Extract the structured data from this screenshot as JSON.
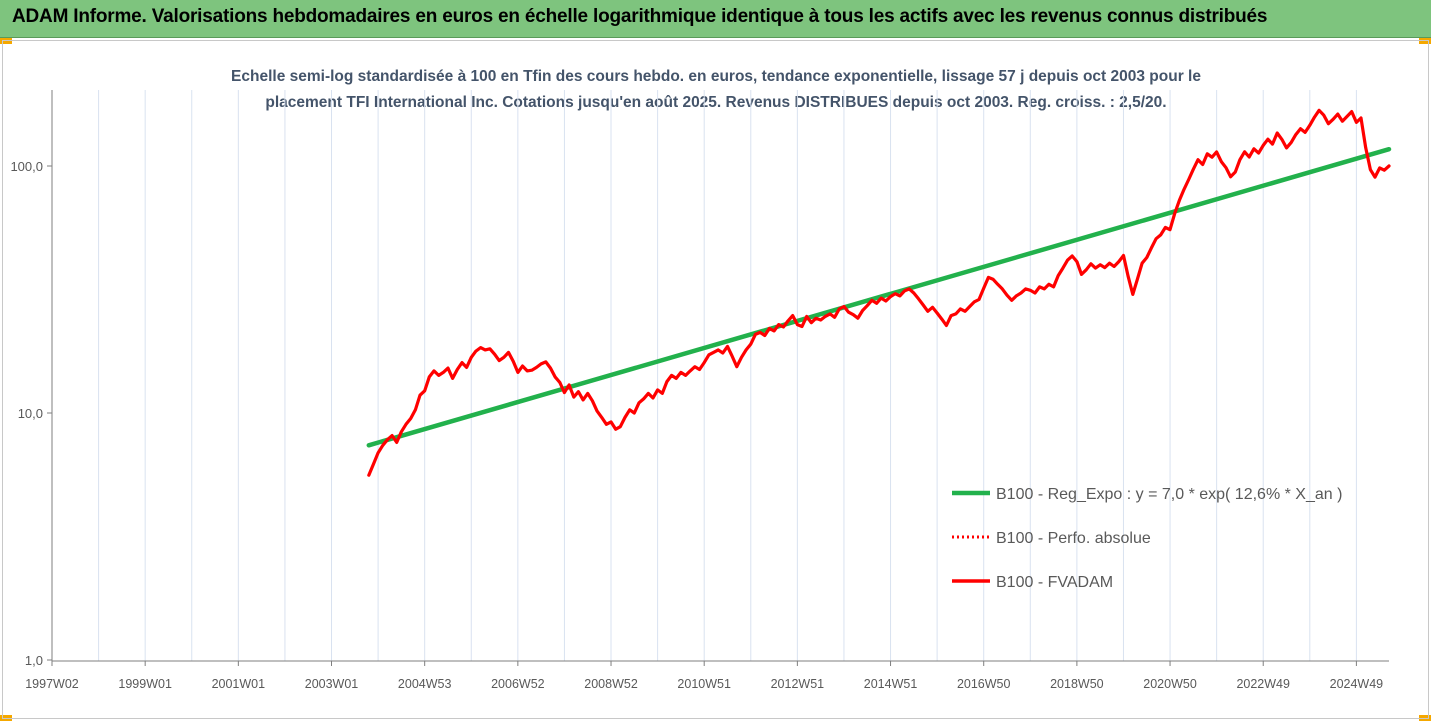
{
  "header": {
    "title": "ADAM Informe. Valorisations hebdomadaires en euros en échelle logarithmique identique à tous les actifs avec les revenus connus distribués"
  },
  "colors": {
    "header_bg": "#7ec47e",
    "corner": "#f5a800",
    "trend": "#22b14c",
    "fvadam": "#ff0000",
    "perf": "#ff0000",
    "grid": "#d9e2f0",
    "subtitle": "#44546a"
  },
  "chart_data": {
    "type": "line",
    "title_lines": [
      "Echelle semi-log standardisée à 100 en Tfin des cours hebdo. en euros, tendance exponentielle, lissage 57 j depuis oct 2003 pour le",
      "placement TFI International Inc. Cotations jusqu'en août 2025. Revenus DISTRIBUES depuis oct 2003. Reg. croiss. : 2,5/20."
    ],
    "y_scale": "log",
    "ylim": [
      1,
      200
    ],
    "y_ticks": [
      {
        "value": 1,
        "label": "1,0"
      },
      {
        "value": 10,
        "label": "10,0"
      },
      {
        "value": 100,
        "label": "100,0"
      }
    ],
    "xlim": [
      1997.0,
      2025.7
    ],
    "x_ticks": [
      {
        "value": 1997.0,
        "label": "1997W02"
      },
      {
        "value": 1999.0,
        "label": "1999W01"
      },
      {
        "value": 2001.0,
        "label": "2001W01"
      },
      {
        "value": 2003.0,
        "label": "2003W01"
      },
      {
        "value": 2005.0,
        "label": "2004W53"
      },
      {
        "value": 2007.0,
        "label": "2006W52"
      },
      {
        "value": 2009.0,
        "label": "2008W52"
      },
      {
        "value": 2011.0,
        "label": "2010W51"
      },
      {
        "value": 2013.0,
        "label": "2012W51"
      },
      {
        "value": 2015.0,
        "label": "2014W51"
      },
      {
        "value": 2017.0,
        "label": "2016W50"
      },
      {
        "value": 2019.0,
        "label": "2018W50"
      },
      {
        "value": 2021.0,
        "label": "2020W50"
      },
      {
        "value": 2023.0,
        "label": "2022W49"
      },
      {
        "value": 2025.0,
        "label": "2024W49"
      }
    ],
    "grid": true,
    "legend_position": "right",
    "legend": [
      {
        "key": "trend",
        "label": "B100 - Reg_Expo : y = 7,0 * exp( 12,6% *  X_an )",
        "style": "solid-thick"
      },
      {
        "key": "perf",
        "label": "B100 - Perfo. absolue",
        "style": "dotted"
      },
      {
        "key": "fvadam",
        "label": "B100 - FVADAM",
        "style": "solid"
      }
    ],
    "series": [
      {
        "key": "trend",
        "points": [
          [
            2003.8,
            7.4
          ],
          [
            2025.7,
            117
          ]
        ]
      },
      {
        "key": "fvadam",
        "points": [
          [
            2003.8,
            5.6
          ],
          [
            2003.9,
            6.2
          ],
          [
            2004.0,
            6.9
          ],
          [
            2004.1,
            7.4
          ],
          [
            2004.2,
            7.8
          ],
          [
            2004.3,
            8.1
          ],
          [
            2004.4,
            7.6
          ],
          [
            2004.5,
            8.4
          ],
          [
            2004.6,
            9.0
          ],
          [
            2004.7,
            9.5
          ],
          [
            2004.8,
            10.3
          ],
          [
            2004.9,
            11.8
          ],
          [
            2005.0,
            12.3
          ],
          [
            2005.1,
            14.0
          ],
          [
            2005.2,
            14.8
          ],
          [
            2005.3,
            14.2
          ],
          [
            2005.4,
            14.6
          ],
          [
            2005.5,
            15.2
          ],
          [
            2005.6,
            13.8
          ],
          [
            2005.7,
            15.0
          ],
          [
            2005.8,
            16.0
          ],
          [
            2005.9,
            15.3
          ],
          [
            2006.0,
            16.8
          ],
          [
            2006.1,
            17.8
          ],
          [
            2006.2,
            18.4
          ],
          [
            2006.3,
            18.0
          ],
          [
            2006.4,
            18.2
          ],
          [
            2006.5,
            17.3
          ],
          [
            2006.6,
            16.3
          ],
          [
            2006.7,
            16.8
          ],
          [
            2006.8,
            17.6
          ],
          [
            2006.9,
            16.2
          ],
          [
            2007.0,
            14.6
          ],
          [
            2007.1,
            15.5
          ],
          [
            2007.2,
            14.8
          ],
          [
            2007.3,
            14.9
          ],
          [
            2007.4,
            15.3
          ],
          [
            2007.5,
            15.8
          ],
          [
            2007.6,
            16.1
          ],
          [
            2007.7,
            15.2
          ],
          [
            2007.8,
            14.0
          ],
          [
            2007.9,
            13.3
          ],
          [
            2008.0,
            12.1
          ],
          [
            2008.1,
            13.0
          ],
          [
            2008.2,
            11.6
          ],
          [
            2008.3,
            12.2
          ],
          [
            2008.4,
            11.3
          ],
          [
            2008.5,
            12.0
          ],
          [
            2008.6,
            11.2
          ],
          [
            2008.7,
            10.2
          ],
          [
            2008.8,
            9.6
          ],
          [
            2008.9,
            9.0
          ],
          [
            2009.0,
            9.2
          ],
          [
            2009.1,
            8.6
          ],
          [
            2009.2,
            8.8
          ],
          [
            2009.3,
            9.6
          ],
          [
            2009.4,
            10.3
          ],
          [
            2009.5,
            10.0
          ],
          [
            2009.6,
            11.0
          ],
          [
            2009.7,
            11.4
          ],
          [
            2009.8,
            12.0
          ],
          [
            2009.9,
            11.5
          ],
          [
            2010.0,
            12.4
          ],
          [
            2010.1,
            12.0
          ],
          [
            2010.2,
            13.4
          ],
          [
            2010.3,
            14.2
          ],
          [
            2010.4,
            13.8
          ],
          [
            2010.5,
            14.6
          ],
          [
            2010.6,
            14.2
          ],
          [
            2010.7,
            14.8
          ],
          [
            2010.8,
            15.4
          ],
          [
            2010.9,
            15.0
          ],
          [
            2011.0,
            16.0
          ],
          [
            2011.1,
            17.2
          ],
          [
            2011.2,
            17.6
          ],
          [
            2011.3,
            18.0
          ],
          [
            2011.4,
            17.5
          ],
          [
            2011.5,
            18.6
          ],
          [
            2011.6,
            17.0
          ],
          [
            2011.7,
            15.4
          ],
          [
            2011.8,
            16.8
          ],
          [
            2011.9,
            18.0
          ],
          [
            2012.0,
            19.0
          ],
          [
            2012.1,
            20.8
          ],
          [
            2012.2,
            21.2
          ],
          [
            2012.3,
            20.6
          ],
          [
            2012.4,
            22.0
          ],
          [
            2012.5,
            21.5
          ],
          [
            2012.6,
            22.8
          ],
          [
            2012.7,
            22.3
          ],
          [
            2012.8,
            23.6
          ],
          [
            2012.9,
            24.8
          ],
          [
            2013.0,
            22.8
          ],
          [
            2013.1,
            22.4
          ],
          [
            2013.2,
            24.6
          ],
          [
            2013.3,
            23.2
          ],
          [
            2013.4,
            24.2
          ],
          [
            2013.5,
            23.8
          ],
          [
            2013.6,
            24.6
          ],
          [
            2013.7,
            25.2
          ],
          [
            2013.8,
            24.4
          ],
          [
            2013.9,
            26.4
          ],
          [
            2014.0,
            27.0
          ],
          [
            2014.1,
            25.6
          ],
          [
            2014.2,
            25.0
          ],
          [
            2014.3,
            24.2
          ],
          [
            2014.4,
            26.0
          ],
          [
            2014.5,
            27.2
          ],
          [
            2014.6,
            28.6
          ],
          [
            2014.7,
            27.8
          ],
          [
            2014.8,
            29.2
          ],
          [
            2014.9,
            28.4
          ],
          [
            2015.0,
            29.6
          ],
          [
            2015.1,
            30.4
          ],
          [
            2015.2,
            29.8
          ],
          [
            2015.3,
            31.2
          ],
          [
            2015.4,
            31.8
          ],
          [
            2015.5,
            30.6
          ],
          [
            2015.6,
            29.0
          ],
          [
            2015.7,
            27.4
          ],
          [
            2015.8,
            25.8
          ],
          [
            2015.9,
            26.8
          ],
          [
            2016.0,
            25.4
          ],
          [
            2016.1,
            24.0
          ],
          [
            2016.2,
            22.6
          ],
          [
            2016.3,
            24.8
          ],
          [
            2016.4,
            25.2
          ],
          [
            2016.5,
            26.4
          ],
          [
            2016.6,
            25.8
          ],
          [
            2016.7,
            27.0
          ],
          [
            2016.8,
            28.2
          ],
          [
            2016.9,
            28.8
          ],
          [
            2017.0,
            32.0
          ],
          [
            2017.1,
            35.4
          ],
          [
            2017.2,
            34.8
          ],
          [
            2017.3,
            33.2
          ],
          [
            2017.4,
            31.8
          ],
          [
            2017.5,
            30.0
          ],
          [
            2017.6,
            28.6
          ],
          [
            2017.7,
            29.8
          ],
          [
            2017.8,
            30.6
          ],
          [
            2017.9,
            31.8
          ],
          [
            2018.0,
            31.4
          ],
          [
            2018.1,
            30.6
          ],
          [
            2018.2,
            32.4
          ],
          [
            2018.3,
            31.8
          ],
          [
            2018.4,
            33.2
          ],
          [
            2018.5,
            32.4
          ],
          [
            2018.6,
            36.0
          ],
          [
            2018.7,
            38.6
          ],
          [
            2018.8,
            41.6
          ],
          [
            2018.9,
            43.2
          ],
          [
            2019.0,
            41.0
          ],
          [
            2019.1,
            36.4
          ],
          [
            2019.2,
            38.0
          ],
          [
            2019.3,
            40.2
          ],
          [
            2019.4,
            38.6
          ],
          [
            2019.5,
            39.8
          ],
          [
            2019.6,
            38.8
          ],
          [
            2019.7,
            40.4
          ],
          [
            2019.8,
            39.2
          ],
          [
            2019.9,
            41.0
          ],
          [
            2020.0,
            43.4
          ],
          [
            2020.1,
            35.8
          ],
          [
            2020.2,
            30.2
          ],
          [
            2020.3,
            34.8
          ],
          [
            2020.4,
            40.4
          ],
          [
            2020.5,
            42.6
          ],
          [
            2020.6,
            46.6
          ],
          [
            2020.7,
            50.8
          ],
          [
            2020.8,
            52.6
          ],
          [
            2020.9,
            56.4
          ],
          [
            2021.0,
            55.2
          ],
          [
            2021.1,
            64.2
          ],
          [
            2021.2,
            72.6
          ],
          [
            2021.3,
            80.4
          ],
          [
            2021.4,
            88.2
          ],
          [
            2021.5,
            97.0
          ],
          [
            2021.6,
            106.0
          ],
          [
            2021.7,
            101.4
          ],
          [
            2021.8,
            112.0
          ],
          [
            2021.9,
            108.6
          ],
          [
            2022.0,
            114.0
          ],
          [
            2022.1,
            104.2
          ],
          [
            2022.2,
            98.4
          ],
          [
            2022.3,
            90.4
          ],
          [
            2022.4,
            94.6
          ],
          [
            2022.5,
            106.0
          ],
          [
            2022.6,
            114.2
          ],
          [
            2022.7,
            108.8
          ],
          [
            2022.8,
            117.4
          ],
          [
            2022.9,
            112.8
          ],
          [
            2023.0,
            121.2
          ],
          [
            2023.1,
            128.4
          ],
          [
            2023.2,
            122.6
          ],
          [
            2023.3,
            136.0
          ],
          [
            2023.4,
            128.2
          ],
          [
            2023.5,
            118.4
          ],
          [
            2023.6,
            124.6
          ],
          [
            2023.7,
            134.0
          ],
          [
            2023.8,
            141.6
          ],
          [
            2023.9,
            136.8
          ],
          [
            2024.0,
            146.2
          ],
          [
            2024.1,
            157.8
          ],
          [
            2024.2,
            168.0
          ],
          [
            2024.3,
            160.6
          ],
          [
            2024.4,
            148.4
          ],
          [
            2024.5,
            154.6
          ],
          [
            2024.6,
            162.2
          ],
          [
            2024.7,
            151.8
          ],
          [
            2024.8,
            158.8
          ],
          [
            2024.9,
            166.0
          ],
          [
            2025.0,
            150.2
          ],
          [
            2025.1,
            156.4
          ],
          [
            2025.2,
            118.6
          ],
          [
            2025.3,
            96.6
          ],
          [
            2025.4,
            90.2
          ],
          [
            2025.5,
            98.2
          ],
          [
            2025.6,
            96.2
          ],
          [
            2025.7,
            100.0
          ]
        ]
      }
    ]
  }
}
